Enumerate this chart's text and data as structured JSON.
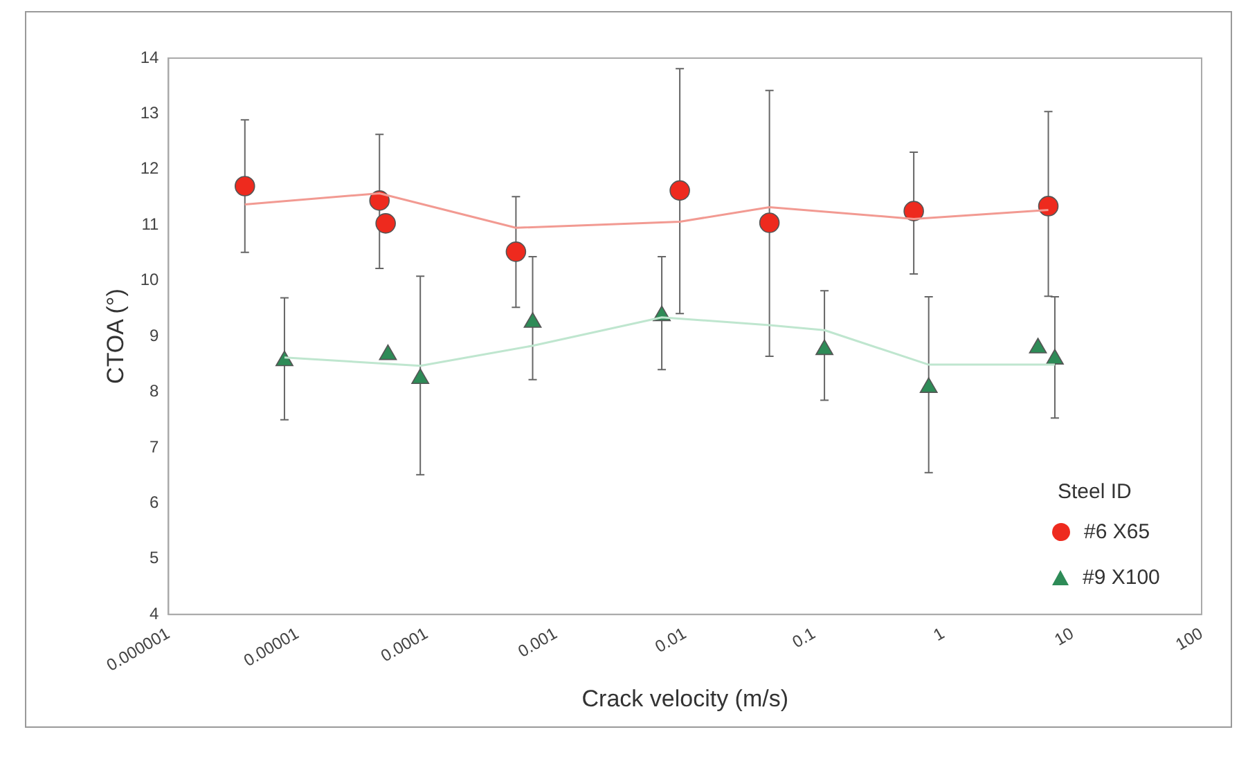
{
  "chart_data": {
    "type": "scatter",
    "xlabel": "Crack velocity (m/s)",
    "ylabel": "CTOA (°)",
    "legend_title": "Steel ID",
    "legend": "bottom right",
    "log": "x",
    "grid": false,
    "xlim": [
      1e-06,
      100
    ],
    "xticks": [
      {
        "value": 1e-06,
        "label": "0.000001"
      },
      {
        "value": 1e-05,
        "label": "0.00001"
      },
      {
        "value": 0.0001,
        "label": "0.0001"
      },
      {
        "value": 0.001,
        "label": "0.001"
      },
      {
        "value": 0.01,
        "label": "0.01"
      },
      {
        "value": 0.1,
        "label": "0.1"
      },
      1,
      10,
      100
    ],
    "ylim": [
      4,
      14
    ],
    "yticks": [
      4,
      5,
      6,
      7,
      8,
      9,
      10,
      11,
      12,
      13,
      14
    ],
    "series": [
      {
        "name": "#6 X65",
        "marker": "circle",
        "color": "#ee2a1e",
        "x": [
          3.9e-06,
          4.3e-05,
          4.8e-05,
          0.00049,
          0.0091,
          0.045,
          0.59,
          6.5
        ],
        "values": [
          11.7,
          11.44,
          11.03,
          10.52,
          11.62,
          11.04,
          11.25,
          11.34
        ],
        "errors": [
          [
            10.51,
            12.89
          ],
          [
            10.22,
            12.63
          ],
          null,
          [
            9.52,
            11.51
          ],
          [
            9.41,
            13.81
          ],
          [
            8.64,
            13.42
          ],
          [
            10.12,
            12.31
          ],
          [
            9.72,
            13.04
          ]
        ]
      },
      {
        "name": "#9 X100",
        "marker": "triangle",
        "color": "#2e8b57",
        "x": [
          7.9e-06,
          5e-05,
          8.9e-05,
          0.00066,
          0.0066,
          0.12,
          0.77,
          5.4,
          7.3
        ],
        "values": [
          8.56,
          8.67,
          8.24,
          9.25,
          9.37,
          8.76,
          8.08,
          8.79,
          8.59
        ],
        "errors": [
          [
            7.5,
            9.69
          ],
          null,
          [
            6.51,
            10.08
          ],
          [
            8.22,
            10.43
          ],
          [
            8.4,
            10.43
          ],
          [
            7.85,
            9.82
          ],
          [
            6.55,
            9.71
          ],
          null,
          [
            7.53,
            9.71
          ]
        ]
      },
      {
        "type": "line",
        "marker": "none",
        "color": "#f29a92",
        "x": [
          3.9e-06,
          4.3e-05,
          0.00049,
          0.0091,
          0.045,
          0.59,
          6.5
        ],
        "values": [
          11.37,
          11.57,
          10.95,
          11.06,
          11.32,
          11.11,
          11.27
        ]
      },
      {
        "type": "line",
        "marker": "none",
        "color": "#bfe6cf",
        "x": [
          7.9e-06,
          8.9e-05,
          0.00066,
          0.0066,
          0.045,
          0.12,
          0.77,
          7.3
        ],
        "values": [
          8.62,
          8.47,
          8.83,
          9.34,
          9.2,
          9.11,
          8.49,
          8.49
        ]
      }
    ]
  }
}
